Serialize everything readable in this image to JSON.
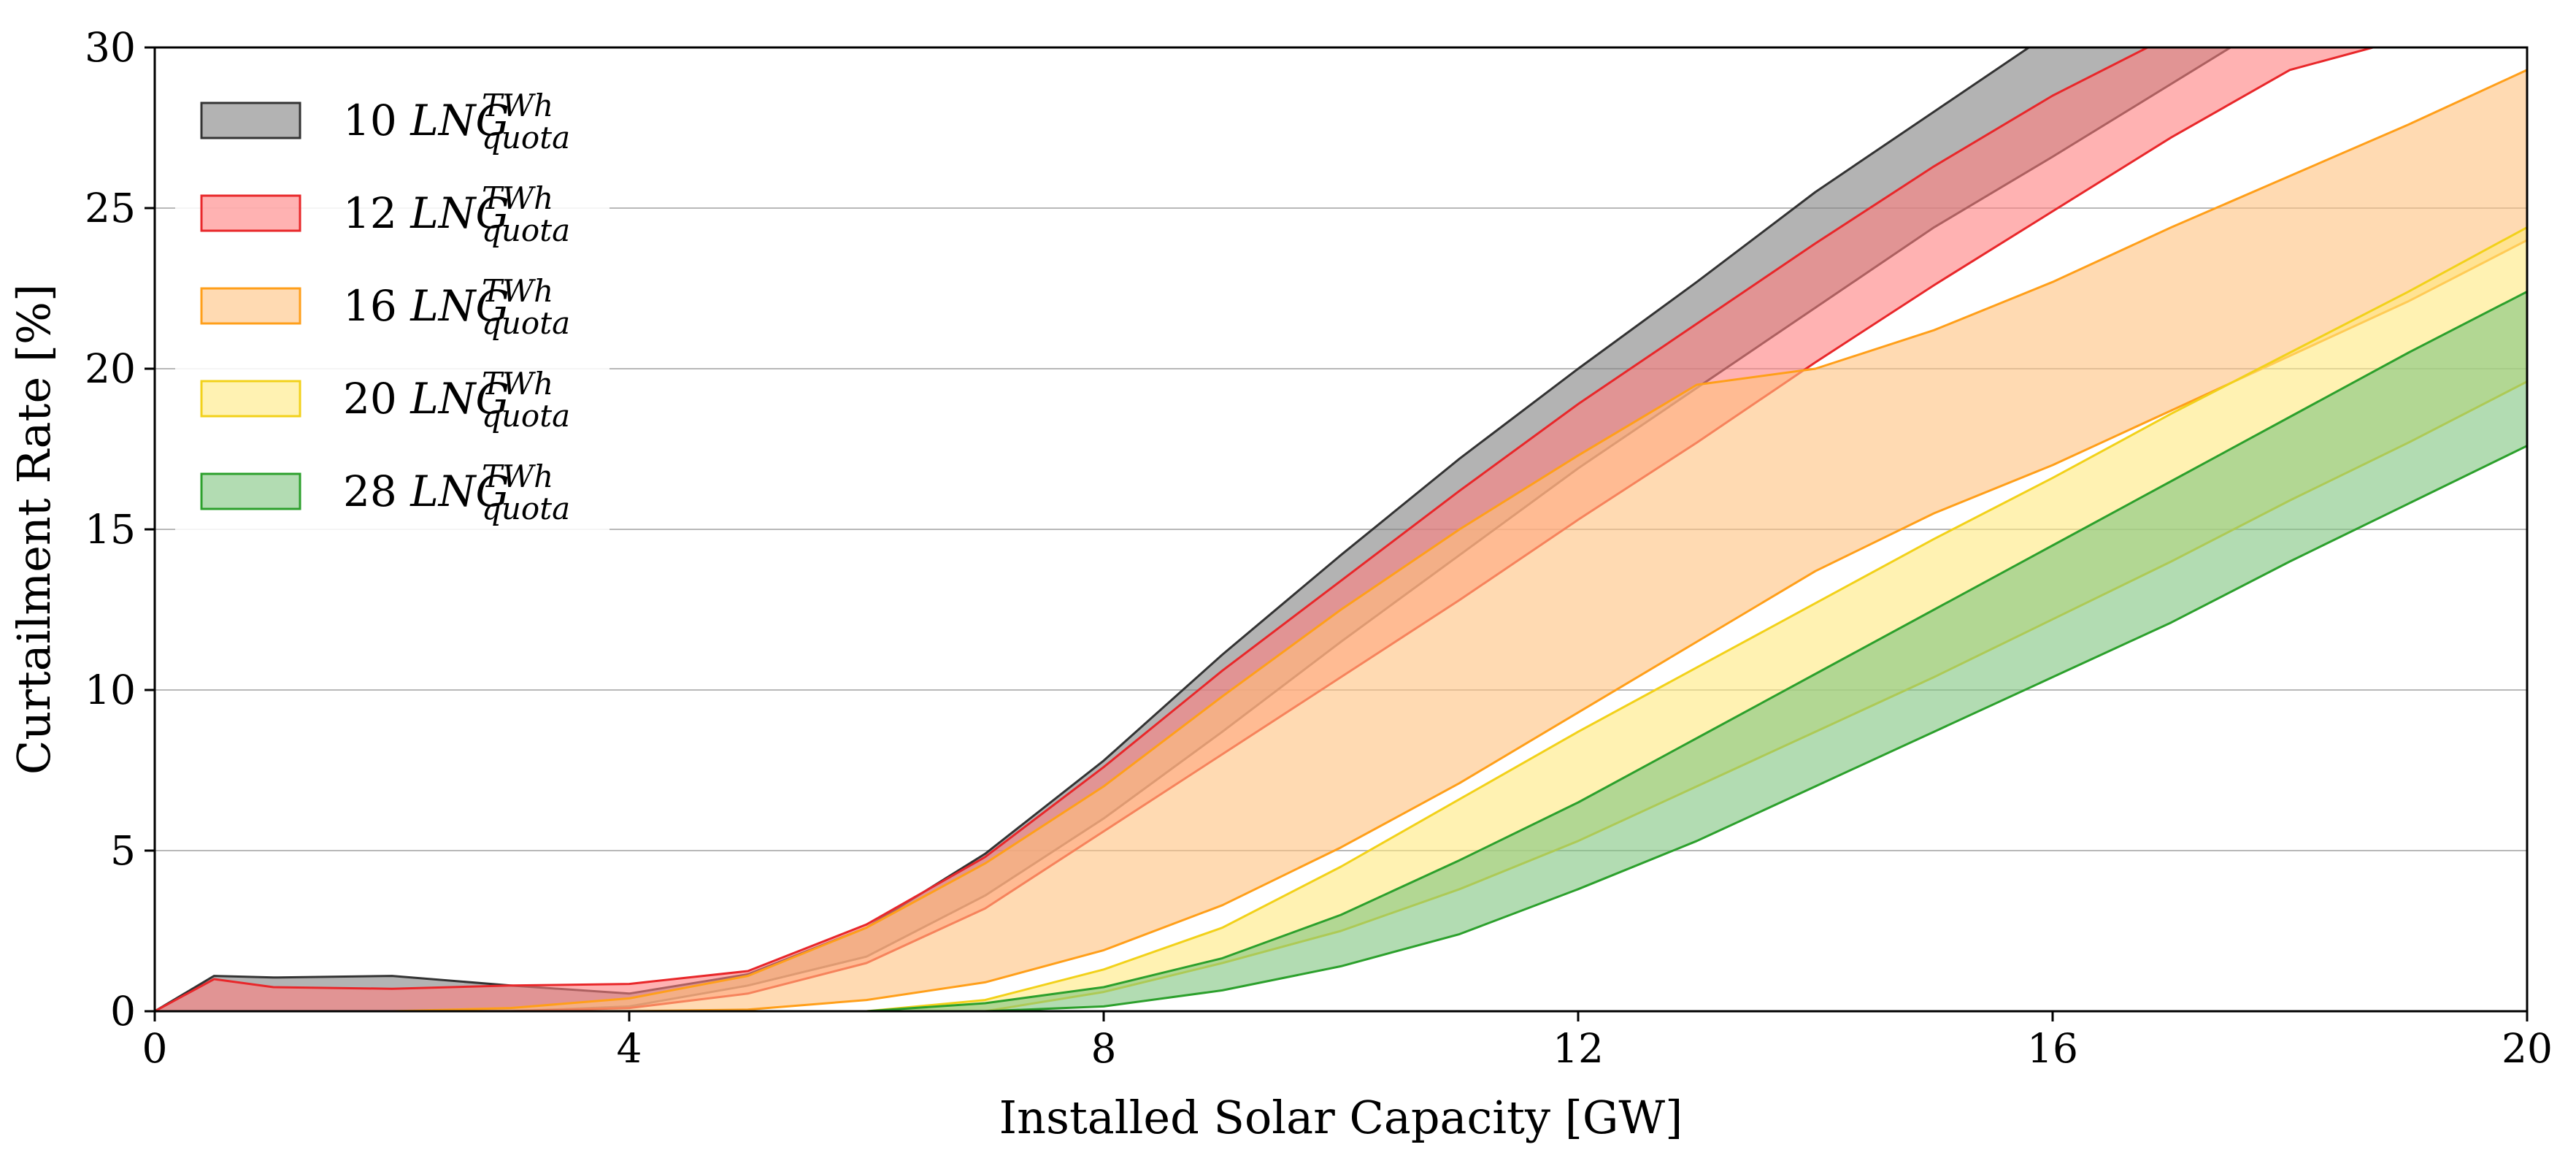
{
  "chart_data": {
    "type": "area",
    "title": "",
    "xlabel": "Installed Solar Capacity [GW]",
    "ylabel": "Curtailment Rate [%]",
    "xlim": [
      0,
      20
    ],
    "ylim": [
      0,
      30
    ],
    "x_ticks": [
      "0",
      "4",
      "8",
      "12",
      "16",
      "20"
    ],
    "y_ticks": [
      "0",
      "5",
      "10",
      "15",
      "20",
      "25",
      "30"
    ],
    "grid": "horizontal",
    "legend_position": "top-left",
    "series": [
      {
        "name": "10",
        "legend_prefix": "10",
        "color": "#808080",
        "edge": "#333333",
        "upper": [
          [
            0,
            0
          ],
          [
            0.5,
            1.1
          ],
          [
            1,
            1.05
          ],
          [
            2,
            1.1
          ],
          [
            3,
            0.8
          ],
          [
            4,
            0.55
          ],
          [
            5,
            1.15
          ],
          [
            6,
            2.6
          ],
          [
            7,
            4.9
          ],
          [
            8,
            7.8
          ],
          [
            9,
            11.1
          ],
          [
            10,
            14.2
          ],
          [
            11,
            17.2
          ],
          [
            12,
            20.0
          ],
          [
            13,
            22.7
          ],
          [
            14,
            25.5
          ],
          [
            15,
            28.0
          ],
          [
            15.8,
            30.0
          ]
        ],
        "lower": [
          [
            0,
            0
          ],
          [
            0.5,
            0
          ],
          [
            1,
            0
          ],
          [
            2,
            0
          ],
          [
            3,
            0
          ],
          [
            4,
            0.15
          ],
          [
            5,
            0.8
          ],
          [
            6,
            1.7
          ],
          [
            7,
            3.6
          ],
          [
            8,
            6.0
          ],
          [
            9,
            8.7
          ],
          [
            10,
            11.5
          ],
          [
            11,
            14.2
          ],
          [
            12,
            16.9
          ],
          [
            13,
            19.4
          ],
          [
            14,
            21.9
          ],
          [
            15,
            24.4
          ],
          [
            16,
            26.6
          ],
          [
            17.5,
            30.0
          ]
        ]
      },
      {
        "name": "12",
        "legend_prefix": "12",
        "color": "#ff7f7f",
        "edge": "#e8272a",
        "upper": [
          [
            0,
            0
          ],
          [
            0.5,
            1.0
          ],
          [
            1,
            0.75
          ],
          [
            2,
            0.7
          ],
          [
            3,
            0.8
          ],
          [
            4,
            0.85
          ],
          [
            5,
            1.25
          ],
          [
            6,
            2.7
          ],
          [
            7,
            4.8
          ],
          [
            8,
            7.6
          ],
          [
            9,
            10.6
          ],
          [
            10,
            13.4
          ],
          [
            11,
            16.2
          ],
          [
            12,
            18.9
          ],
          [
            13,
            21.4
          ],
          [
            14,
            23.9
          ],
          [
            15,
            26.3
          ],
          [
            16,
            28.5
          ],
          [
            16.8,
            30.0
          ]
        ],
        "lower": [
          [
            0,
            0
          ],
          [
            0.5,
            0
          ],
          [
            1,
            0
          ],
          [
            2,
            0
          ],
          [
            3,
            0
          ],
          [
            4,
            0.1
          ],
          [
            5,
            0.55
          ],
          [
            6,
            1.5
          ],
          [
            7,
            3.2
          ],
          [
            8,
            5.6
          ],
          [
            9,
            8.0
          ],
          [
            10,
            10.4
          ],
          [
            11,
            12.8
          ],
          [
            12,
            15.3
          ],
          [
            13,
            17.7
          ],
          [
            14,
            20.2
          ],
          [
            15,
            22.6
          ],
          [
            16,
            24.9
          ],
          [
            17,
            27.2
          ],
          [
            18,
            29.3
          ],
          [
            18.7,
            30.0
          ]
        ]
      },
      {
        "name": "16",
        "legend_prefix": "16",
        "color": "#ffc27f",
        "edge": "#ff9f1a",
        "upper": [
          [
            0,
            0
          ],
          [
            2,
            0
          ],
          [
            3,
            0.1
          ],
          [
            4,
            0.4
          ],
          [
            5,
            1.1
          ],
          [
            6,
            2.6
          ],
          [
            7,
            4.6
          ],
          [
            8,
            7.0
          ],
          [
            9,
            9.8
          ],
          [
            10,
            12.5
          ],
          [
            11,
            15.0
          ],
          [
            12,
            17.3
          ],
          [
            13,
            19.5
          ],
          [
            14,
            20.0
          ],
          [
            15,
            21.2
          ],
          [
            16,
            22.7
          ],
          [
            17,
            24.4
          ],
          [
            18,
            26.0
          ],
          [
            19,
            27.6
          ],
          [
            20,
            29.3
          ]
        ],
        "lower": [
          [
            0,
            0
          ],
          [
            4,
            0
          ],
          [
            5,
            0.05
          ],
          [
            6,
            0.35
          ],
          [
            7,
            0.9
          ],
          [
            8,
            1.9
          ],
          [
            9,
            3.3
          ],
          [
            10,
            5.1
          ],
          [
            11,
            7.1
          ],
          [
            12,
            9.3
          ],
          [
            13,
            11.5
          ],
          [
            14,
            13.7
          ],
          [
            15,
            15.5
          ],
          [
            16,
            17.0
          ],
          [
            17,
            18.7
          ],
          [
            18,
            20.4
          ],
          [
            19,
            22.1
          ],
          [
            20,
            24.0
          ]
        ]
      },
      {
        "name": "20",
        "legend_prefix": "20",
        "color": "#ffe97f",
        "edge": "#f2d11a",
        "upper": [
          [
            0,
            0
          ],
          [
            6,
            0
          ],
          [
            7,
            0.35
          ],
          [
            8,
            1.3
          ],
          [
            9,
            2.6
          ],
          [
            10,
            4.5
          ],
          [
            11,
            6.6
          ],
          [
            12,
            8.7
          ],
          [
            13,
            10.7
          ],
          [
            14,
            12.7
          ],
          [
            15,
            14.7
          ],
          [
            16,
            16.6
          ],
          [
            17,
            18.6
          ],
          [
            18,
            20.5
          ],
          [
            19,
            22.4
          ],
          [
            20,
            24.4
          ]
        ],
        "lower": [
          [
            0,
            0
          ],
          [
            7,
            0
          ],
          [
            8,
            0.6
          ],
          [
            9,
            1.5
          ],
          [
            10,
            2.5
          ],
          [
            11,
            3.8
          ],
          [
            12,
            5.3
          ],
          [
            13,
            7.0
          ],
          [
            14,
            8.7
          ],
          [
            15,
            10.4
          ],
          [
            16,
            12.2
          ],
          [
            17,
            14.0
          ],
          [
            18,
            15.9
          ],
          [
            19,
            17.7
          ],
          [
            20,
            19.6
          ]
        ]
      },
      {
        "name": "28",
        "legend_prefix": "28",
        "color": "#7fc47f",
        "edge": "#2ca02c",
        "upper": [
          [
            0,
            0
          ],
          [
            6,
            0
          ],
          [
            7,
            0.25
          ],
          [
            8,
            0.75
          ],
          [
            9,
            1.65
          ],
          [
            10,
            3.0
          ],
          [
            11,
            4.7
          ],
          [
            12,
            6.5
          ],
          [
            13,
            8.5
          ],
          [
            14,
            10.5
          ],
          [
            15,
            12.5
          ],
          [
            16,
            14.5
          ],
          [
            17,
            16.5
          ],
          [
            18,
            18.5
          ],
          [
            19,
            20.5
          ],
          [
            20,
            22.4
          ]
        ],
        "lower": [
          [
            0,
            0
          ],
          [
            7,
            0
          ],
          [
            8,
            0.15
          ],
          [
            9,
            0.65
          ],
          [
            10,
            1.4
          ],
          [
            11,
            2.4
          ],
          [
            12,
            3.8
          ],
          [
            13,
            5.3
          ],
          [
            14,
            7.0
          ],
          [
            15,
            8.7
          ],
          [
            16,
            10.4
          ],
          [
            17,
            12.1
          ],
          [
            18,
            14.0
          ],
          [
            19,
            15.8
          ],
          [
            20,
            17.6
          ]
        ]
      }
    ],
    "legend_math": {
      "base": "LNG",
      "superscript": "TWh",
      "subscript": "quota"
    }
  }
}
